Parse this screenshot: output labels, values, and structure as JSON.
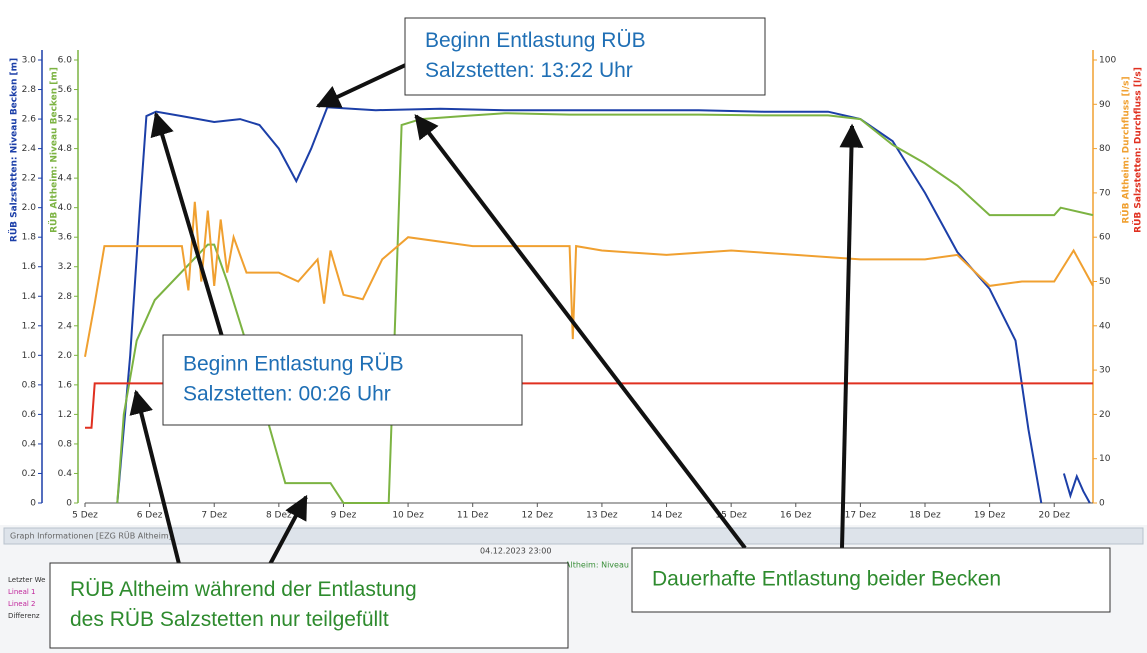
{
  "chart_data": {
    "type": "line",
    "annotations": [
      {
        "lines": [
          "Beginn Entlastung RÜB",
          "Salzstetten: 13:22 Uhr"
        ],
        "color": "#1f6fb5"
      },
      {
        "lines": [
          "Beginn Entlastung RÜB",
          "Salzstetten: 00:26 Uhr"
        ],
        "color": "#1f6fb5"
      },
      {
        "lines": [
          "RÜB Altheim während der Entlastung",
          "des RÜB Salzstetten nur teilgefüllt"
        ],
        "color": "#2e8b2e"
      },
      {
        "lines": [
          "Dauerhafte Entlastung beider Becken"
        ],
        "color": "#2e8b2e"
      }
    ],
    "ylabel": "RÜB Salzstetten: Niveau Becken [m]",
    "y3label": "RÜB Altheim: Niveau Becken [m]",
    "y2label": "RÜB Altheim: Durchfluss [l/s]",
    "y4label": "RÜB Salzstetten: Durchfluss [l/s]",
    "xlim": [
      5,
      20.6
    ],
    "xticks": [
      {
        "value": 5,
        "label": "5 Dez"
      },
      {
        "value": 6,
        "label": "6 Dez"
      },
      {
        "value": 7,
        "label": "7 Dez"
      },
      {
        "value": 8,
        "label": "8 Dez"
      },
      {
        "value": 9,
        "label": "9 Dez"
      },
      {
        "value": 10,
        "label": "10 Dez"
      },
      {
        "value": 11,
        "label": "11 Dez"
      },
      {
        "value": 12,
        "label": "12 Dez"
      },
      {
        "value": 13,
        "label": "13 Dez"
      },
      {
        "value": 14,
        "label": "14 Dez"
      },
      {
        "value": 15,
        "label": "15 Dez"
      },
      {
        "value": 16,
        "label": "16 Dez"
      },
      {
        "value": 17,
        "label": "17 Dez"
      },
      {
        "value": 18,
        "label": "18 Dez"
      },
      {
        "value": 19,
        "label": "19 Dez"
      },
      {
        "value": 20,
        "label": "20 Dez"
      }
    ],
    "ylim": [
      0,
      3
    ],
    "yticks": [
      0,
      0.2,
      0.4,
      0.6,
      0.8,
      {
        "value": 1,
        "label": "1.0"
      },
      1.2,
      1.4,
      1.6,
      1.8,
      {
        "value": 2,
        "label": "2.0"
      },
      2.2,
      2.4,
      2.6,
      2.8,
      {
        "value": 3,
        "label": "3.0"
      }
    ],
    "y3lim": [
      0,
      6
    ],
    "y3ticks": [
      0,
      0.4,
      0.8,
      1.2,
      1.6,
      {
        "value": 2,
        "label": "2.0"
      },
      2.4,
      2.8,
      3.2,
      3.6,
      {
        "value": 4,
        "label": "4.0"
      },
      4.4,
      4.8,
      5.2,
      5.6,
      {
        "value": 6,
        "label": "6.0"
      }
    ],
    "y2lim": [
      0,
      100
    ],
    "y2ticks": [
      0,
      10,
      20,
      30,
      40,
      50,
      60,
      70,
      80,
      90,
      100
    ],
    "series": [
      {
        "name": "RÜB Salzstetten: Niveau Becken",
        "color": "#1c3fa8",
        "axis": "y",
        "x": [
          5.5,
          5.7,
          5.85,
          5.95,
          6.1,
          6.5,
          7.0,
          7.4,
          7.7,
          8.0,
          8.27,
          8.5,
          8.75,
          9.5,
          10.5,
          11.5,
          12.5,
          13.5,
          14.5,
          15.5,
          16.5,
          17.0,
          17.5,
          18.0,
          18.5,
          19.0,
          19.4,
          19.6,
          19.8,
          20.0,
          20.15,
          20.25,
          20.35,
          20.45,
          20.55
        ],
        "values": [
          0,
          1.0,
          2.0,
          2.62,
          2.65,
          2.62,
          2.58,
          2.6,
          2.56,
          2.4,
          2.18,
          2.4,
          2.68,
          2.66,
          2.67,
          2.66,
          2.66,
          2.66,
          2.66,
          2.65,
          2.65,
          2.6,
          2.45,
          2.1,
          1.7,
          1.45,
          1.1,
          0.5,
          0,
          null,
          0.2,
          0.05,
          0.18,
          0.08,
          0
        ]
      },
      {
        "name": "RÜB Altheim: Niveau Becken",
        "color": "#7cb342",
        "axis": "y3",
        "x": [
          5.5,
          5.6,
          5.8,
          6.08,
          6.9,
          7.0,
          7.2,
          7.45,
          7.8,
          8.1,
          8.8,
          9.0,
          9.7,
          9.8,
          9.9,
          10.2,
          11.0,
          11.5,
          12.5,
          13.5,
          14.5,
          15.5,
          16.5,
          17.0,
          17.5,
          18.0,
          18.5,
          19.0,
          20.0,
          20.1,
          20.6
        ],
        "values": [
          0,
          1.2,
          2.2,
          2.75,
          3.5,
          3.5,
          3.0,
          2.3,
          1.2,
          0.27,
          0.27,
          0,
          0,
          2.5,
          5.12,
          5.2,
          5.25,
          5.28,
          5.26,
          5.26,
          5.26,
          5.25,
          5.25,
          5.2,
          4.85,
          4.6,
          4.3,
          3.9,
          3.9,
          4.0,
          3.9
        ]
      },
      {
        "name": "RÜB Altheim: Durchfluss",
        "color": "#f0a030",
        "axis": "y2",
        "x": [
          5.0,
          5.15,
          5.3,
          5.8,
          6.5,
          6.6,
          6.7,
          6.8,
          6.9,
          7.0,
          7.1,
          7.2,
          7.3,
          7.5,
          8.0,
          8.3,
          8.6,
          8.7,
          8.8,
          9.0,
          9.3,
          9.6,
          10.0,
          11.0,
          12.0,
          12.5,
          12.55,
          12.6,
          13.0,
          14.0,
          15.0,
          16.0,
          17.0,
          18.0,
          18.5,
          19.0,
          19.5,
          20.0,
          20.3,
          20.6
        ],
        "values": [
          33,
          45,
          58,
          58,
          58,
          48,
          68,
          50,
          66,
          49,
          64,
          52,
          60,
          52,
          52,
          50,
          55,
          45,
          57,
          47,
          46,
          55,
          60,
          58,
          58,
          58,
          37,
          58,
          57,
          56,
          57,
          56,
          55,
          55,
          56,
          49,
          50,
          50,
          57,
          49
        ]
      },
      {
        "name": "RÜB Salzstetten: Durchfluss",
        "color": "#e03020",
        "axis": "y2",
        "x": [
          5.0,
          5.1,
          5.15,
          8.0,
          12.0,
          16.0,
          18.0,
          19.0,
          20.6
        ],
        "values": [
          17,
          17,
          27,
          27,
          27,
          27,
          27,
          27,
          27
        ]
      }
    ]
  },
  "panel": {
    "title": "Graph Informationen [EZG RÜB Altheim]",
    "date": "04.12.2023 23:00",
    "legend": "Altheim: Niveau B",
    "rows": [
      "Letzter We",
      "Lineal 1",
      "Lineal 2",
      "Differenz"
    ]
  }
}
